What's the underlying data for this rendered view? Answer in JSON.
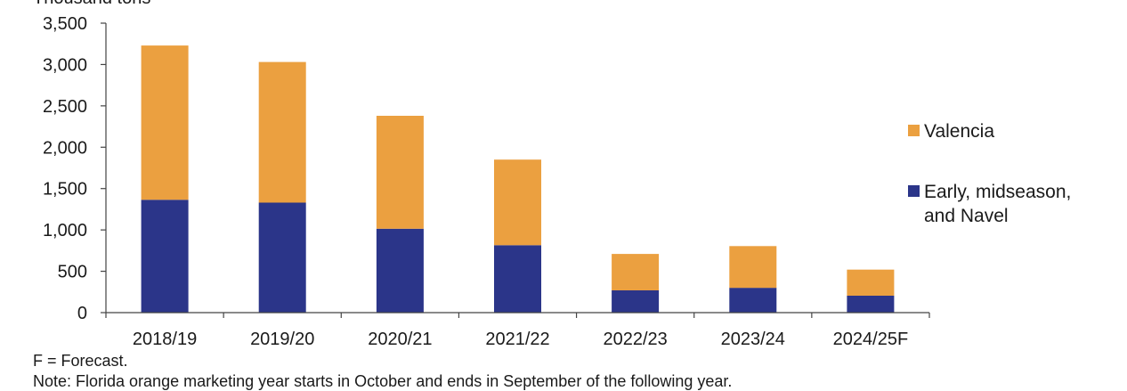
{
  "chart_data": {
    "type": "bar",
    "stacked": true,
    "ylabel": "Thousand tons",
    "categories": [
      "2018/19",
      "2019/20",
      "2020/21",
      "2021/22",
      "2022/23",
      "2023/24",
      "2024/25F"
    ],
    "series": [
      {
        "name": "Early, midseason, and Navel",
        "color": "#2b3589",
        "values": [
          1365,
          1330,
          1015,
          815,
          270,
          300,
          205
        ]
      },
      {
        "name": "Valencia",
        "color": "#eba040",
        "values": [
          1865,
          1700,
          1365,
          1035,
          440,
          505,
          315
        ]
      }
    ],
    "ylim": [
      0,
      3500
    ],
    "yticks": [
      0,
      500,
      1000,
      1500,
      2000,
      2500,
      3000,
      3500
    ],
    "ytick_labels": [
      "0",
      "500",
      "1,000",
      "1,500",
      "2,000",
      "2,500",
      "3,000",
      "3,500"
    ],
    "legend": {
      "placement": "right",
      "items": [
        {
          "lines": [
            "Valencia"
          ],
          "color": "#eba040"
        },
        {
          "lines": [
            "Early, midseason,",
            "and Navel"
          ],
          "color": "#2b3589"
        }
      ]
    },
    "grid": false
  },
  "notes": {
    "forecast": "F = Forecast.",
    "marketing_year": "Note: Florida orange marketing year starts in October and ends in September of the following year."
  }
}
